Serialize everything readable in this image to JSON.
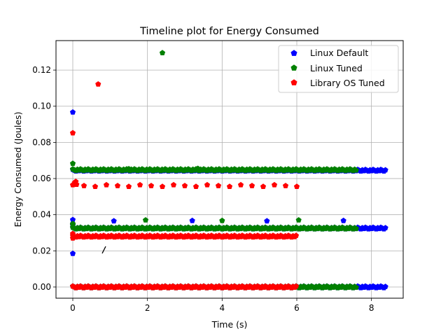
{
  "chart_data": {
    "type": "scatter",
    "title": "Timeline plot for Energy Consumed",
    "xlabel": "Time (s)",
    "ylabel": "Energy Consumed (Joules)",
    "xlim": [
      -0.45,
      8.85
    ],
    "ylim": [
      -0.0062,
      0.1363
    ],
    "xticks": [
      0,
      2,
      4,
      6,
      8
    ],
    "yticks": [
      0.0,
      0.02,
      0.04,
      0.06,
      0.08,
      0.1,
      0.12
    ],
    "ytick_labels": [
      "0.00",
      "0.02",
      "0.04",
      "0.06",
      "0.08",
      "0.10",
      "0.12"
    ],
    "grid": true,
    "legend_position": "top-right",
    "marker": "pentagon",
    "series": [
      {
        "name": "Linux Default",
        "color": "#0000ff",
        "x_end": 8.4,
        "bands": [
          0.0,
          0.0325,
          0.0645
        ],
        "points": [
          [
            0.0,
            0.0967
          ],
          [
            0.0,
            0.0185
          ],
          [
            0.0,
            0.0372
          ],
          [
            0.0,
            0.0345
          ],
          [
            0.0,
            0.0342
          ],
          [
            1.1,
            0.0365
          ],
          [
            3.2,
            0.0367
          ],
          [
            5.2,
            0.0365
          ],
          [
            7.25,
            0.0367
          ]
        ]
      },
      {
        "name": "Linux Tuned",
        "color": "#008000",
        "x_end": 7.6,
        "bands": [
          0.0,
          0.0325,
          0.0648
        ],
        "points": [
          [
            0.0,
            0.0683
          ],
          [
            2.4,
            0.1295
          ],
          [
            1.95,
            0.037
          ],
          [
            4.0,
            0.0367
          ],
          [
            6.05,
            0.037
          ],
          [
            0.0,
            0.035
          ],
          [
            0.0,
            0.0345
          ],
          [
            3.35,
            0.0655
          ],
          [
            1.5,
            0.0653
          ]
        ]
      },
      {
        "name": "Library OS Tuned",
        "color": "#ff0000",
        "x_end": 6.0,
        "bands": [
          0.0,
          0.028,
          0.056
        ],
        "points": [
          [
            0.0,
            0.0852
          ],
          [
            0.68,
            0.1122
          ],
          [
            0.05,
            0.0577
          ],
          [
            0.08,
            0.0583
          ],
          [
            0.1,
            0.0567
          ],
          [
            0.0,
            0.0295
          ],
          [
            0.0,
            0.027
          ]
        ]
      }
    ]
  },
  "legend": {
    "items": [
      {
        "label": "Linux Default",
        "color": "#0000ff"
      },
      {
        "label": "Linux Tuned",
        "color": "#008000"
      },
      {
        "label": "Library OS Tuned",
        "color": "#ff0000"
      }
    ]
  }
}
